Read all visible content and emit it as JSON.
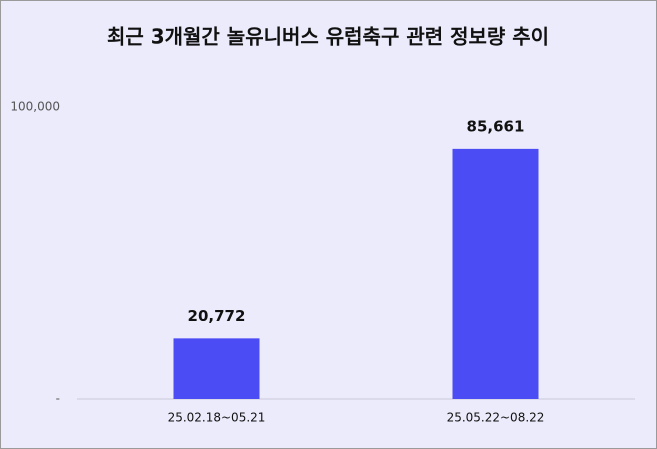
{
  "chart_data": {
    "type": "bar",
    "title": "최근 3개월간 놀유니버스 유럽축구 관련 정보량 추이",
    "categories": [
      "25.02.18~05.21",
      "25.05.22~08.22"
    ],
    "values": [
      20772,
      85661
    ],
    "value_labels": [
      "20,772",
      "85,661"
    ],
    "color": "#4c4cf5",
    "ylim": [
      0,
      100000
    ],
    "yticks": [
      {
        "value": 0,
        "label": "-"
      },
      {
        "value": 100000,
        "label": "100,000"
      }
    ]
  }
}
